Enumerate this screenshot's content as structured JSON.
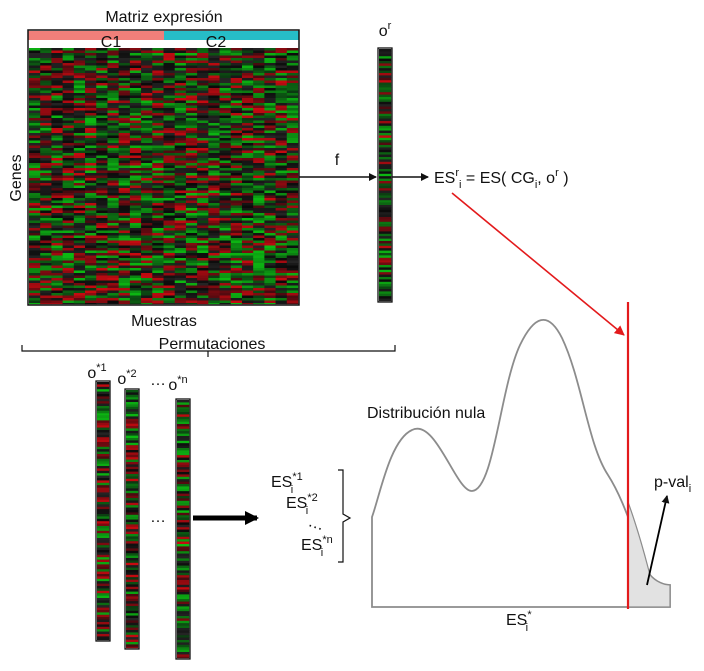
{
  "matrix": {
    "title": "Matriz expresión",
    "class1": "C1",
    "class2": "C2",
    "ylabel": "Genes",
    "xlabel": "Muestras",
    "class1_color": "#F07F7A",
    "class2_color": "#26BDC7"
  },
  "observed": {
    "vector_label": "o",
    "vector_sup": "r",
    "function_label": "f",
    "es_formula": {
      "lhs": "ES",
      "lhs_sup": "r",
      "lhs_sub": "i",
      "eq": " = ES( CG",
      "cg_sub": "i",
      "tail": ", o",
      "tail_sup": "r",
      "close": " )"
    }
  },
  "permutations": {
    "label": "Permutaciones",
    "vectors": [
      {
        "base": "o",
        "sup": "*1"
      },
      {
        "base": "o",
        "sup": "*2"
      },
      {
        "base": "o",
        "sup": "*n"
      }
    ],
    "dots": "…",
    "es_list": [
      {
        "base": "ES",
        "sup": "*1",
        "sub": "i"
      },
      {
        "base": "ES",
        "sup": "*2",
        "sub": "i"
      },
      {
        "base": "ES",
        "sup": "*n",
        "sub": "i"
      }
    ]
  },
  "distribution": {
    "label": "Distribución nula",
    "xlabel_base": "ES",
    "xlabel_sup": "*",
    "xlabel_sub": "i",
    "pval_base": "p-val",
    "pval_sub": "i"
  },
  "colors": {
    "observed_line": "#E31A1C",
    "curve": "#8C8C8C",
    "tail_fill": "#E2E2E2",
    "heat_red": "#C0152A",
    "heat_green": "#1FA22E",
    "heat_dark": "#121212"
  }
}
